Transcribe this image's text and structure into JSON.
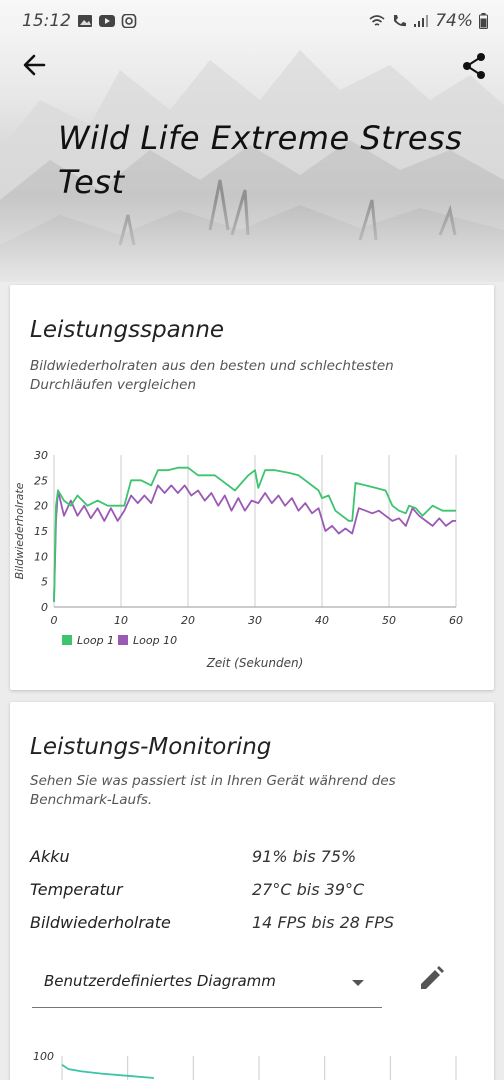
{
  "status_bar": {
    "time": "15:12",
    "battery": "74%"
  },
  "header": {
    "title": "Wild Life Extreme Stress Test"
  },
  "performance_range": {
    "title": "Leistungsspanne",
    "subtitle": "Bildwiederholraten aus den besten und schlechtesten Durchläufen vergleichen"
  },
  "chart_data": [
    {
      "type": "line",
      "xlabel": "Zeit (Sekunden)",
      "ylabel": "Bildwiederholrate",
      "xlim": [
        0,
        60
      ],
      "ylim": [
        0,
        30
      ],
      "x_ticks": [
        "0",
        "10",
        "20",
        "30",
        "40",
        "50",
        "60"
      ],
      "y_ticks": [
        "0",
        "5",
        "10",
        "15",
        "20",
        "25",
        "30"
      ],
      "grid": "vertical",
      "legend": "bottom-left",
      "series": [
        {
          "name": "Loop 1",
          "color": "#3cc46e",
          "x": [
            0,
            0.3,
            0.6,
            1.5,
            2.5,
            3.5,
            5,
            6.5,
            8,
            9.5,
            10.5,
            11.5,
            13,
            14.5,
            15.5,
            17,
            18.5,
            20,
            21.5,
            23,
            24,
            25,
            26,
            27,
            28,
            29,
            30,
            30.5,
            31.5,
            33,
            35,
            36.5,
            38,
            39.5,
            40,
            41,
            42,
            43,
            44,
            44.5,
            45,
            46.5,
            48,
            49.5,
            50.5,
            51.5,
            52.5,
            53,
            54,
            55,
            56.5,
            58,
            59.5,
            60
          ],
          "values": [
            1,
            20,
            23,
            21,
            20,
            22,
            20,
            21,
            20,
            20,
            20,
            25,
            25,
            24,
            27,
            27,
            27.5,
            27.5,
            26,
            26,
            26,
            25,
            24,
            23,
            24.5,
            26,
            27,
            23.5,
            27,
            27,
            26.5,
            26,
            24.5,
            23,
            21.5,
            22,
            19,
            18,
            17,
            17,
            24.5,
            24,
            23.5,
            23,
            20,
            19,
            18.5,
            20,
            19.5,
            18,
            20,
            19,
            19,
            19
          ]
        },
        {
          "name": "Loop 10",
          "color": "#9b59b6",
          "x": [
            0,
            0.3,
            0.6,
            1.5,
            2.5,
            3.5,
            4.5,
            5.5,
            6.5,
            7.5,
            8.5,
            9.5,
            10.5,
            11.5,
            12.5,
            13.5,
            14.5,
            15.5,
            16.5,
            17.5,
            18.5,
            19.5,
            20.5,
            21.5,
            22.5,
            23.5,
            24.5,
            25.5,
            26.5,
            27.5,
            28.5,
            29.5,
            30.5,
            31.5,
            32.5,
            33.5,
            34.5,
            35.5,
            36.5,
            37.5,
            38.5,
            39.5,
            40.5,
            41.5,
            42.5,
            43.5,
            44.5,
            45.5,
            46.5,
            47.5,
            48.5,
            49.5,
            50.5,
            51.5,
            52.5,
            53.5,
            54.5,
            55.5,
            56.5,
            57.5,
            58.5,
            59.5,
            60
          ],
          "values": [
            1,
            17,
            23,
            18,
            21,
            18,
            20,
            17.5,
            19.5,
            17,
            19.5,
            17,
            19,
            22,
            20.5,
            22,
            20.5,
            24,
            22.5,
            24,
            22.5,
            24,
            22,
            23,
            21,
            22.5,
            20,
            22,
            19,
            21.5,
            19,
            21,
            20.5,
            22.5,
            20.5,
            22,
            20,
            21.5,
            19,
            20.5,
            18.5,
            19.5,
            15,
            16,
            14.5,
            15.5,
            14.5,
            19.5,
            19,
            18.5,
            19,
            18,
            17,
            17.5,
            16,
            19.5,
            18,
            17,
            16,
            17.5,
            16,
            17,
            17
          ]
        }
      ]
    },
    {
      "type": "line",
      "ylim_top_label": "100",
      "series": [
        {
          "color": "#3cc4a8",
          "x": [
            0,
            1,
            3,
            6,
            10,
            14
          ],
          "values": [
            96,
            94,
            93,
            92,
            91,
            90
          ]
        }
      ]
    }
  ],
  "monitoring": {
    "title": "Leistungs-Monitoring",
    "subtitle": "Sehen Sie was passiert ist in Ihren Gerät während des Benchmark-Laufs.",
    "rows": [
      {
        "label": "Akku",
        "value": "91% bis 75%"
      },
      {
        "label": "Temperatur",
        "value": "27°C bis 39°C"
      },
      {
        "label": "Bildwiederholrate",
        "value": "14 FPS bis 28 FPS"
      }
    ],
    "dropdown": {
      "selected": "Benutzerdefiniertes Diagramm"
    }
  }
}
